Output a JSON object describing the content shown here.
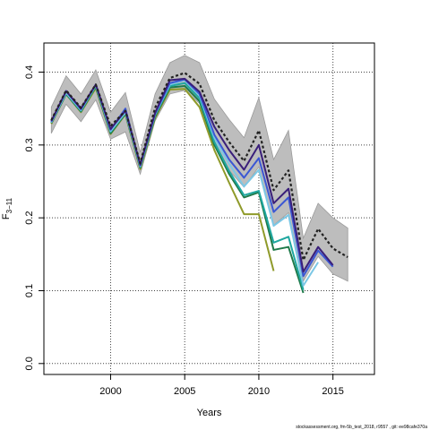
{
  "chart_data": {
    "type": "line",
    "xlabel": "Years",
    "ylabel": "F",
    "ylabel_sub": "3−11",
    "xlim": [
      1995.5,
      2017.8
    ],
    "ylim": [
      -0.015,
      0.44
    ],
    "xticks": [
      2000,
      2005,
      2010,
      2015
    ],
    "yticks": [
      0.0,
      0.1,
      0.2,
      0.3,
      0.4
    ],
    "grid": "dotted",
    "footer": "stockassessment.org, fm-5b_test_2018, r9557 , git: ee98cafe370a",
    "confidence_band": {
      "x": [
        1996,
        1997,
        1998,
        1999,
        2000,
        2001,
        2002,
        2003,
        2004,
        2005,
        2006,
        2007,
        2008,
        2009,
        2010,
        2011,
        2012,
        2013,
        2014,
        2015,
        2016
      ],
      "upper": [
        0.352,
        0.395,
        0.37,
        0.403,
        0.345,
        0.372,
        0.29,
        0.37,
        0.413,
        0.423,
        0.413,
        0.363,
        0.335,
        0.31,
        0.365,
        0.28,
        0.32,
        0.172,
        0.22,
        0.2,
        0.186
      ],
      "lower": [
        0.316,
        0.356,
        0.332,
        0.362,
        0.308,
        0.318,
        0.26,
        0.333,
        0.37,
        0.375,
        0.357,
        0.305,
        0.265,
        0.242,
        0.27,
        0.19,
        0.207,
        0.113,
        0.147,
        0.123,
        0.113
      ],
      "color": "#bdbdbd"
    },
    "series": [
      {
        "color": "#8f9a2a",
        "x": [
          1996,
          1997,
          1998,
          1999,
          2000,
          2001,
          2002,
          2003,
          2004,
          2005,
          2006,
          2007,
          2008,
          2009,
          2010,
          2011
        ],
        "values": [
          0.329,
          0.37,
          0.345,
          0.378,
          0.315,
          0.342,
          0.267,
          0.337,
          0.376,
          0.377,
          0.352,
          0.293,
          0.248,
          0.205,
          0.205,
          0.127
        ]
      },
      {
        "color": "#1f7a4a",
        "x": [
          1996,
          1997,
          1998,
          1999,
          2000,
          2001,
          2002,
          2003,
          2004,
          2005,
          2006,
          2007,
          2008,
          2009,
          2010,
          2011,
          2012,
          2013
        ],
        "values": [
          0.33,
          0.37,
          0.346,
          0.38,
          0.316,
          0.343,
          0.269,
          0.339,
          0.379,
          0.381,
          0.36,
          0.3,
          0.26,
          0.228,
          0.235,
          0.156,
          0.16,
          0.097
        ]
      },
      {
        "color": "#1fa7a0",
        "x": [
          1996,
          1997,
          1998,
          1999,
          2000,
          2001,
          2002,
          2003,
          2004,
          2005,
          2006,
          2007,
          2008,
          2009,
          2010,
          2011,
          2012,
          2013
        ],
        "values": [
          0.331,
          0.371,
          0.347,
          0.381,
          0.318,
          0.344,
          0.27,
          0.341,
          0.381,
          0.385,
          0.364,
          0.304,
          0.264,
          0.231,
          0.237,
          0.166,
          0.174,
          0.101
        ]
      },
      {
        "color": "#7cc7e5",
        "x": [
          1996,
          1997,
          1998,
          1999,
          2000,
          2001,
          2002,
          2003,
          2004,
          2005,
          2006,
          2007,
          2008,
          2009,
          2010,
          2011,
          2012,
          2013,
          2014
        ],
        "values": [
          0.331,
          0.372,
          0.348,
          0.382,
          0.319,
          0.345,
          0.271,
          0.342,
          0.383,
          0.389,
          0.368,
          0.31,
          0.274,
          0.243,
          0.266,
          0.189,
          0.204,
          0.107,
          0.139
        ]
      },
      {
        "color": "#3b57d4",
        "x": [
          1996,
          1997,
          1998,
          1999,
          2000,
          2001,
          2002,
          2003,
          2004,
          2005,
          2006,
          2007,
          2008,
          2009,
          2010,
          2011,
          2012,
          2013,
          2014,
          2015
        ],
        "values": [
          0.332,
          0.374,
          0.349,
          0.383,
          0.321,
          0.35,
          0.272,
          0.343,
          0.385,
          0.39,
          0.37,
          0.314,
          0.28,
          0.255,
          0.282,
          0.208,
          0.228,
          0.12,
          0.155,
          0.133
        ]
      },
      {
        "color": "#3a1f7a",
        "x": [
          1996,
          1997,
          1998,
          1999,
          2000,
          2001,
          2002,
          2003,
          2004,
          2005,
          2006,
          2007,
          2008,
          2009,
          2010,
          2011,
          2012,
          2013,
          2014,
          2015
        ],
        "values": [
          0.333,
          0.374,
          0.35,
          0.383,
          0.322,
          0.347,
          0.273,
          0.344,
          0.389,
          0.391,
          0.373,
          0.325,
          0.293,
          0.266,
          0.3,
          0.22,
          0.24,
          0.126,
          0.16,
          0.135
        ]
      },
      {
        "color": "#222222",
        "dashed": true,
        "x": [
          1996,
          1997,
          1998,
          1999,
          2000,
          2001,
          2002,
          2003,
          2004,
          2005,
          2006,
          2007,
          2008,
          2009,
          2010,
          2011,
          2012,
          2013,
          2014,
          2015,
          2016
        ],
        "values": [
          0.334,
          0.375,
          0.351,
          0.383,
          0.326,
          0.347,
          0.275,
          0.351,
          0.392,
          0.399,
          0.384,
          0.334,
          0.304,
          0.278,
          0.32,
          0.238,
          0.265,
          0.142,
          0.185,
          0.158,
          0.146
        ]
      }
    ]
  }
}
